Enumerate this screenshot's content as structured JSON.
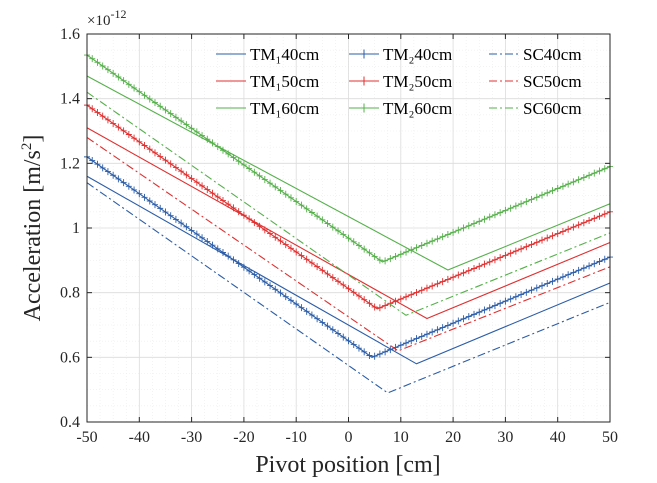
{
  "chart_data": {
    "type": "line",
    "xlabel": "Pivot position [cm]",
    "ylabel_main": "Acceleration [m/s",
    "ylabel_sup": "2",
    "ylabel_end": "]",
    "y_multiplier_base": "×10",
    "y_multiplier_exp": "-12",
    "xlim": [
      -50,
      50
    ],
    "ylim": [
      0.4,
      1.6
    ],
    "xticks": [
      -50,
      -40,
      -30,
      -20,
      -10,
      0,
      10,
      20,
      30,
      40,
      50
    ],
    "yticks": [
      0.4,
      0.6,
      0.8,
      1,
      1.2,
      1.4,
      1.6
    ],
    "xtick_labels": [
      "-50",
      "-40",
      "-30",
      "-20",
      "-10",
      "0",
      "10",
      "20",
      "30",
      "40",
      "50"
    ],
    "ytick_labels": [
      "0.4",
      "0.6",
      "0.8",
      "1",
      "1.2",
      "1.4",
      "1.6"
    ],
    "grid": true,
    "legend_position": "top-right",
    "series": [
      {
        "name": "TM₁40cm",
        "color": "#2b5da8",
        "style": "solid",
        "marker": "none",
        "x": [
          -50,
          13,
          50
        ],
        "y": [
          1.16,
          0.58,
          0.83
        ]
      },
      {
        "name": "TM₂40cm",
        "color": "#2b5da8",
        "style": "solid",
        "marker": "plus",
        "x": [
          -50,
          4.5,
          50
        ],
        "y": [
          1.22,
          0.6,
          0.91
        ]
      },
      {
        "name": "SC40cm",
        "color": "#2b5da8",
        "style": "dashdot",
        "marker": "none",
        "x": [
          -50,
          7.5,
          50
        ],
        "y": [
          1.14,
          0.49,
          0.77
        ]
      },
      {
        "name": "TM₁50cm",
        "color": "#e03030",
        "style": "solid",
        "marker": "none",
        "x": [
          -50,
          15,
          50
        ],
        "y": [
          1.31,
          0.72,
          0.955
        ]
      },
      {
        "name": "TM₂50cm",
        "color": "#e03030",
        "style": "solid",
        "marker": "plus",
        "x": [
          -50,
          5.5,
          50
        ],
        "y": [
          1.38,
          0.75,
          1.05
        ]
      },
      {
        "name": "SC50cm",
        "color": "#e03030",
        "style": "dashdot",
        "marker": "none",
        "x": [
          -50,
          9.5,
          50
        ],
        "y": [
          1.28,
          0.62,
          0.88
        ]
      },
      {
        "name": "TM₁60cm",
        "color": "#55b04a",
        "style": "solid",
        "marker": "none",
        "x": [
          -50,
          19,
          50
        ],
        "y": [
          1.47,
          0.87,
          1.075
        ]
      },
      {
        "name": "TM₂60cm",
        "color": "#55b04a",
        "style": "solid",
        "marker": "plus",
        "x": [
          -50,
          6.5,
          50
        ],
        "y": [
          1.535,
          0.895,
          1.19
        ]
      },
      {
        "name": "SC60cm",
        "color": "#55b04a",
        "style": "dashdot",
        "marker": "none",
        "x": [
          -50,
          11,
          50
        ],
        "y": [
          1.42,
          0.73,
          0.985
        ]
      }
    ]
  }
}
